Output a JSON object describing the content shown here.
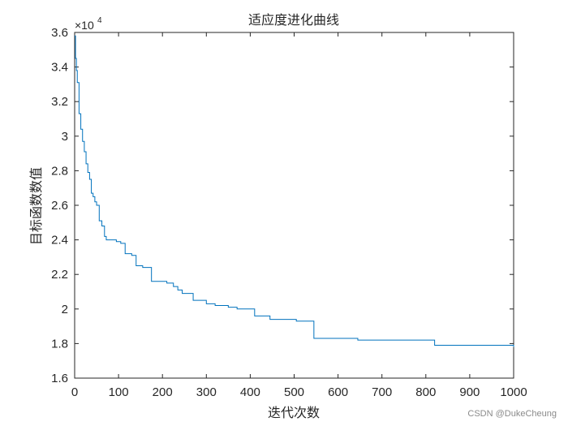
{
  "chart_data": {
    "type": "line",
    "title": "适应度进化曲线",
    "xlabel": "迭代次数",
    "ylabel": "目标函数数值",
    "y_exponent_label": "×10",
    "y_exponent_power": "4",
    "xlim": [
      0,
      1000
    ],
    "ylim": [
      1.6,
      3.6
    ],
    "x_ticks": [
      0,
      100,
      200,
      300,
      400,
      500,
      600,
      700,
      800,
      900,
      1000
    ],
    "x_tick_labels": [
      "0",
      "100",
      "200",
      "300",
      "400",
      "500",
      "600",
      "700",
      "800",
      "900",
      "1000"
    ],
    "y_ticks": [
      1.6,
      1.8,
      2.0,
      2.2,
      2.4,
      2.6,
      2.8,
      3.0,
      3.2,
      3.4,
      3.6
    ],
    "y_tick_labels": [
      "1.6",
      "1.8",
      "2",
      "2.2",
      "2.4",
      "2.6",
      "2.8",
      "3",
      "3.2",
      "3.4",
      "3.6"
    ],
    "grid": false,
    "line_color": "#0072BD",
    "series": [
      {
        "x": [
          0,
          2,
          4,
          6,
          10,
          14,
          18,
          22,
          26,
          30,
          34,
          38,
          42,
          46,
          50,
          56,
          62,
          68,
          72,
          76,
          95,
          105,
          115,
          130,
          140,
          155,
          175,
          210,
          225,
          235,
          245,
          270,
          300,
          320,
          350,
          370,
          410,
          445,
          505,
          545,
          645,
          820,
          850,
          1000
        ],
        "y": [
          3.58,
          3.45,
          3.38,
          3.31,
          3.13,
          3.04,
          2.97,
          2.91,
          2.84,
          2.79,
          2.75,
          2.67,
          2.65,
          2.62,
          2.6,
          2.51,
          2.48,
          2.42,
          2.4,
          2.4,
          2.39,
          2.38,
          2.32,
          2.31,
          2.25,
          2.24,
          2.16,
          2.15,
          2.13,
          2.11,
          2.09,
          2.05,
          2.03,
          2.02,
          2.01,
          2.0,
          1.96,
          1.94,
          1.93,
          1.83,
          1.82,
          1.79,
          1.79,
          1.78
        ]
      }
    ]
  },
  "watermark": "CSDN @DukeCheung"
}
